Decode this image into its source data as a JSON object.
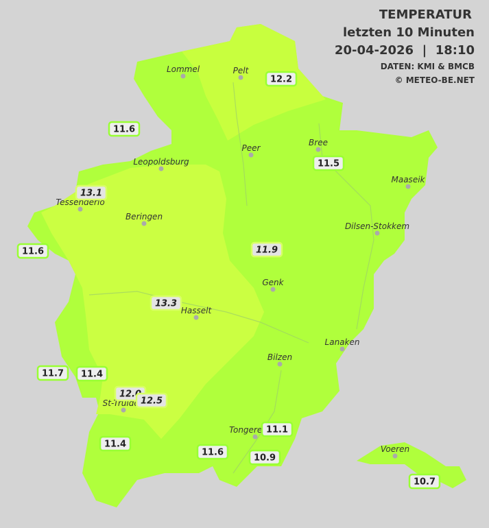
{
  "header": {
    "title": "TEMPERATUR",
    "subtitle": "letzten 10 Minuten",
    "datetime": "20-04-2026  |  18:10",
    "source": "DATEN: KMI & BMCB",
    "copyright": "© METEO-BE.NET"
  },
  "cities": [
    "Lommel",
    "Pelt",
    "Peer",
    "Bree",
    "Leopoldsburg",
    "Maaseik",
    "Tessenderlo",
    "Beringen",
    "Dilsen-Stokkem",
    "Genk",
    "Hasselt",
    "Lanaken",
    "Bilzen",
    "St-Truiden",
    "Tongeren",
    "Voeren"
  ],
  "stations": [
    "12.2",
    "11.6",
    "11.5",
    "13.1",
    "11.6",
    "11.9",
    "13.3",
    "11.7",
    "11.4",
    "12.0",
    "12.5",
    "11.4",
    "11.6",
    "11.1",
    "10.9",
    "10.7"
  ]
}
